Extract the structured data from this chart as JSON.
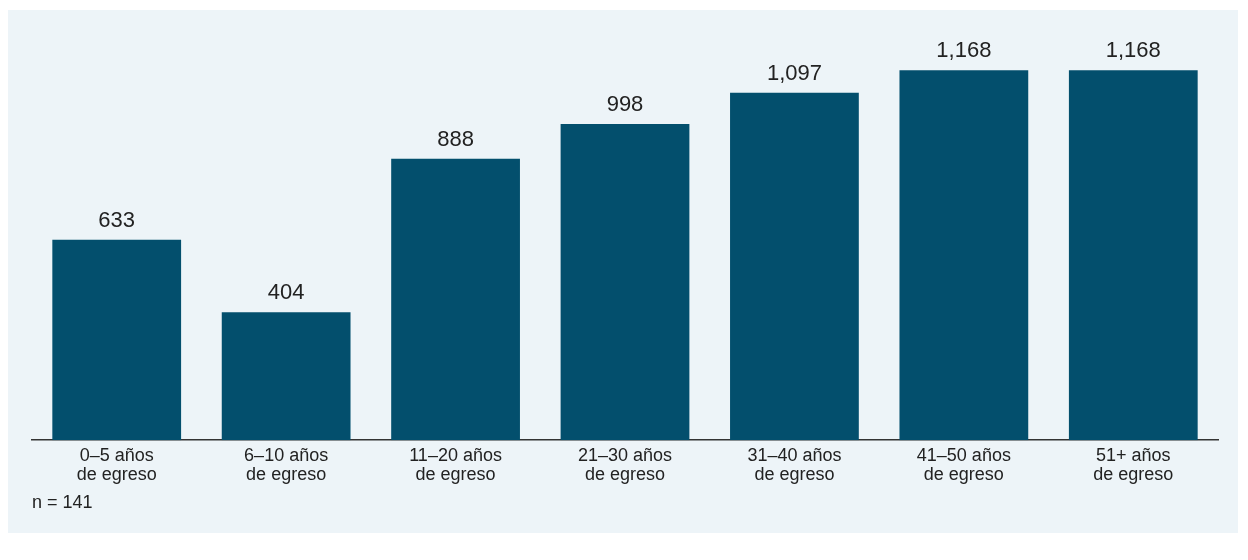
{
  "chart_data": {
    "type": "bar",
    "categories": [
      "0–5 años\nde egreso",
      "6–10 años\nde egreso",
      "11–20 años\nde egreso",
      "21–30 años\nde egreso",
      "31–40 años\nde egreso",
      "41–50 años\nde egreso",
      "51+ años\nde egreso"
    ],
    "values": [
      633,
      404,
      888,
      998,
      1097,
      1168,
      1168
    ],
    "color": "#034f6d",
    "data_labels": true,
    "value_labels": [
      "633",
      "404",
      "888",
      "998",
      "1,097",
      "1,168",
      "1,168"
    ],
    "grid": false,
    "legend": false,
    "tick_labels": "x",
    "annotations": [
      "n = 141"
    ]
  }
}
